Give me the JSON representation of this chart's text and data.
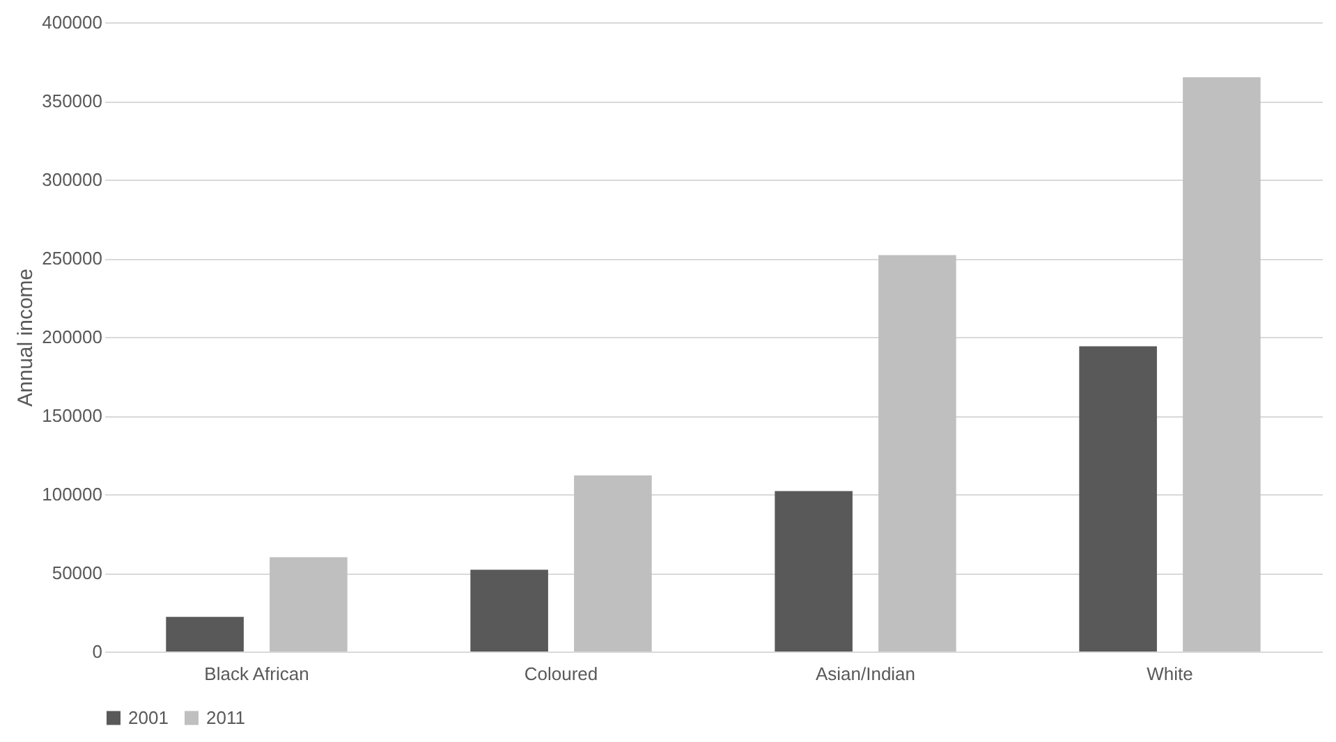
{
  "chart_data": {
    "type": "bar",
    "ylabel": "Annual income",
    "categories": [
      "Black African",
      "Coloured",
      "Asian/Indian",
      "White"
    ],
    "series": [
      {
        "name": "2001",
        "color": "#595959",
        "values": [
          22000,
          52000,
          102000,
          194000
        ]
      },
      {
        "name": "2011",
        "color": "#bfbfbf",
        "values": [
          60000,
          112000,
          252000,
          365000
        ]
      }
    ],
    "ylim": [
      0,
      400000
    ],
    "yticks": [
      0,
      50000,
      100000,
      150000,
      200000,
      250000,
      300000,
      350000,
      400000
    ],
    "grid": "y",
    "legend": "bottom"
  }
}
